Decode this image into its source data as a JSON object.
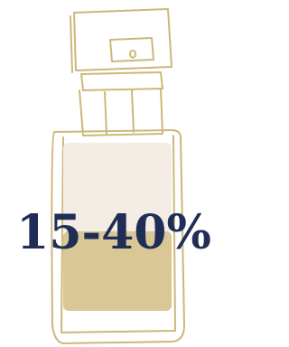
{
  "text": "15-40%"
}
